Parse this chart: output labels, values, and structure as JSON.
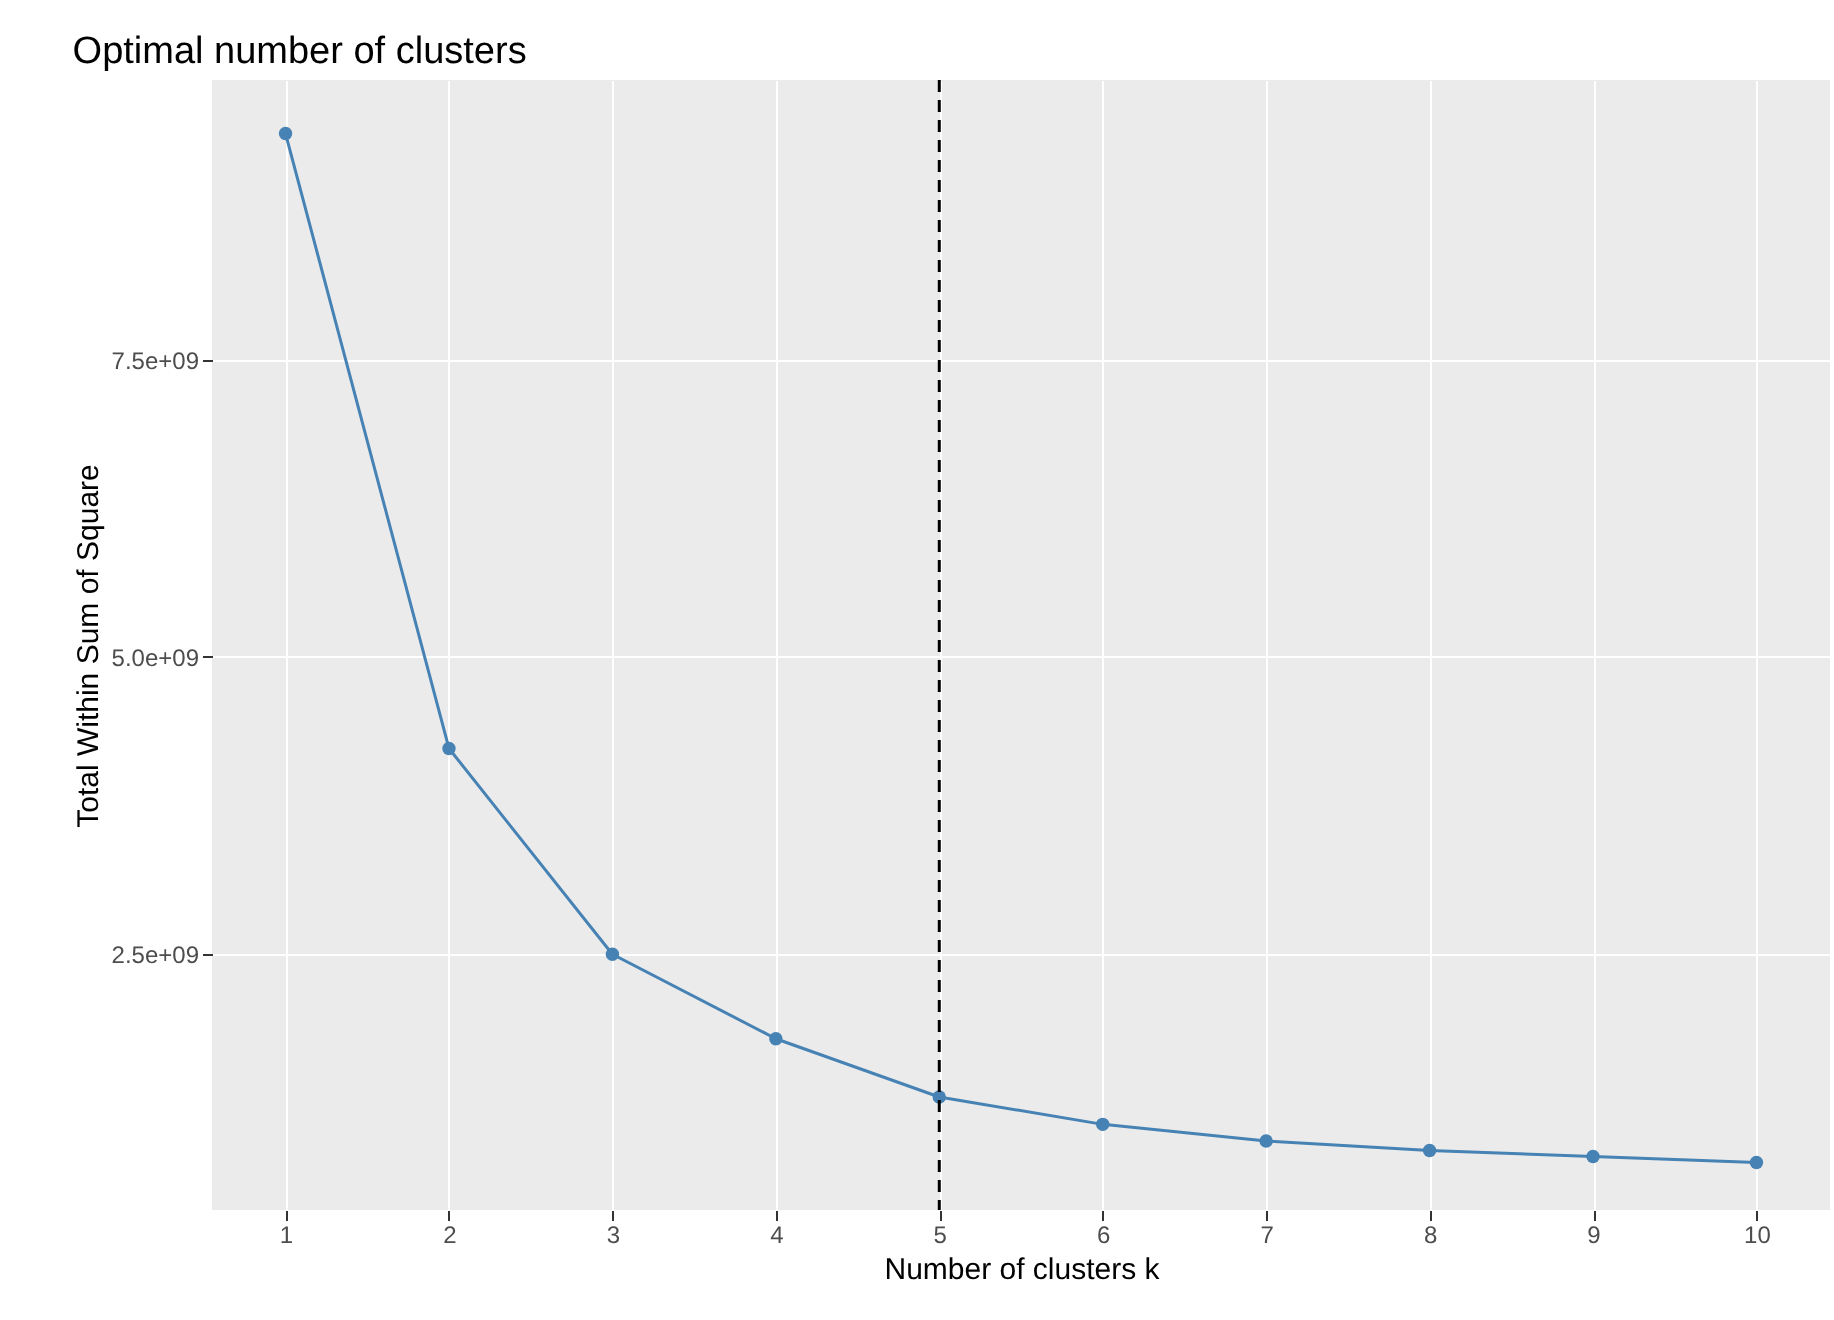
{
  "chart_data": {
    "type": "line",
    "title": "Optimal number of clusters",
    "xlabel": "Number of clusters k",
    "ylabel": "Total Within Sum of Square",
    "x": [
      1,
      2,
      3,
      4,
      5,
      6,
      7,
      8,
      9,
      10
    ],
    "series": [
      {
        "color": "#4682b4",
        "values": [
          9400000000.0,
          4230000000.0,
          2500000000.0,
          1790000000.0,
          1300000000.0,
          1070000000.0,
          930000000.0,
          850000000.0,
          800000000.0,
          750000000.0
        ]
      }
    ],
    "xlim": [
      0.55,
      10.45
    ],
    "xticks": [
      1,
      2,
      3,
      4,
      5,
      6,
      7,
      8,
      9,
      10
    ],
    "ylim": [
      350000000.0,
      9850000000.0
    ],
    "yticks": [
      {
        "value": 2500000000.0,
        "label": "2.5e+09"
      },
      {
        "value": 5000000000.0,
        "label": "5.0e+09"
      },
      {
        "value": 7500000000.0,
        "label": "7.5e+09"
      }
    ],
    "ref_lines": [
      {
        "axis": "x",
        "value": 5,
        "color": "#000000",
        "line_style": "dashed"
      }
    ],
    "grid": true,
    "marker": "circle",
    "line_style": "solid"
  }
}
